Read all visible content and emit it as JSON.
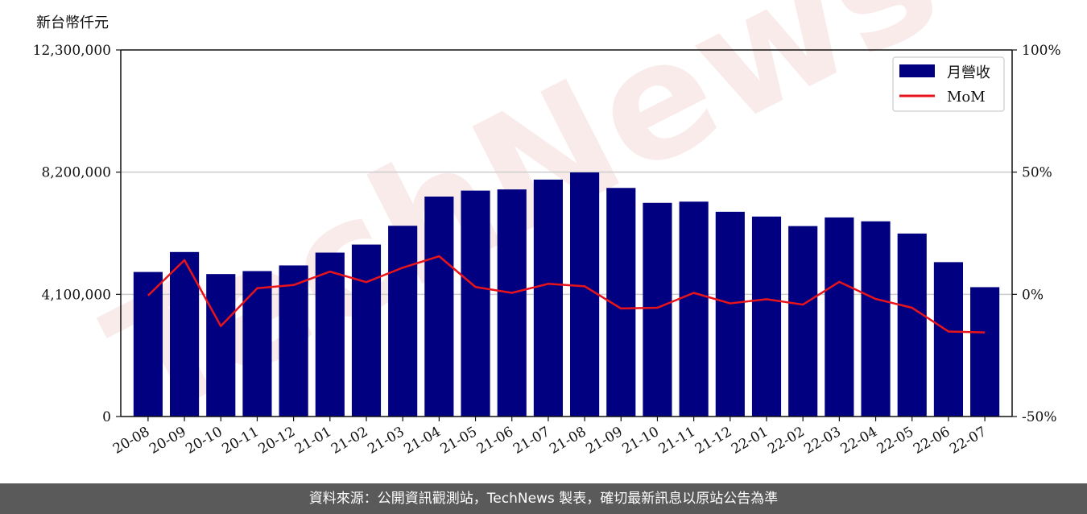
{
  "y_unit_label": "新台幣仟元",
  "footer_text": "資料來源：公開資訊觀測站，TechNews 製表，確切最新訊息以原站公告為準",
  "watermark_text": "TechNews",
  "colors": {
    "bar": "#000080",
    "line": "#e8141b",
    "grid": "#cccccc"
  },
  "chart_data": {
    "type": "bar",
    "categories": [
      "20-08",
      "20-09",
      "20-10",
      "20-11",
      "20-12",
      "21-01",
      "21-02",
      "21-03",
      "21-04",
      "21-05",
      "21-06",
      "21-07",
      "21-08",
      "21-09",
      "21-10",
      "21-11",
      "21-12",
      "22-01",
      "22-02",
      "22-03",
      "22-04",
      "22-05",
      "22-06",
      "22-07"
    ],
    "series": [
      {
        "name": "月營收",
        "type": "bar",
        "axis": "left",
        "values": [
          4850000,
          5520000,
          4780000,
          4880000,
          5070000,
          5500000,
          5770000,
          6400000,
          7380000,
          7580000,
          7620000,
          7950000,
          8190000,
          7670000,
          7170000,
          7210000,
          6870000,
          6710000,
          6390000,
          6680000,
          6550000,
          6140000,
          5180000,
          4340000
        ]
      },
      {
        "name": "MoM",
        "type": "line",
        "axis": "right",
        "values": [
          -0.5,
          14.0,
          -13.0,
          2.5,
          3.8,
          9.3,
          5.0,
          10.9,
          15.6,
          3.0,
          0.6,
          4.3,
          3.3,
          -5.8,
          -5.5,
          0.6,
          -3.7,
          -2.0,
          -4.2,
          5.1,
          -1.9,
          -5.5,
          -15.2,
          -15.6
        ]
      }
    ],
    "y_left": {
      "lim": [
        0,
        12300000
      ],
      "ticks": [
        "0",
        "4,100,000",
        "8,200,000",
        "12,300,000"
      ],
      "tick_values": [
        0,
        4100000,
        8200000,
        12300000
      ]
    },
    "y_right": {
      "lim": [
        -50,
        100
      ],
      "ticks": [
        "-50%",
        "0%",
        "50%",
        "100%"
      ],
      "tick_values": [
        -50,
        0,
        50,
        100
      ]
    },
    "grid": "horizontal",
    "legend_position": "top-right"
  }
}
